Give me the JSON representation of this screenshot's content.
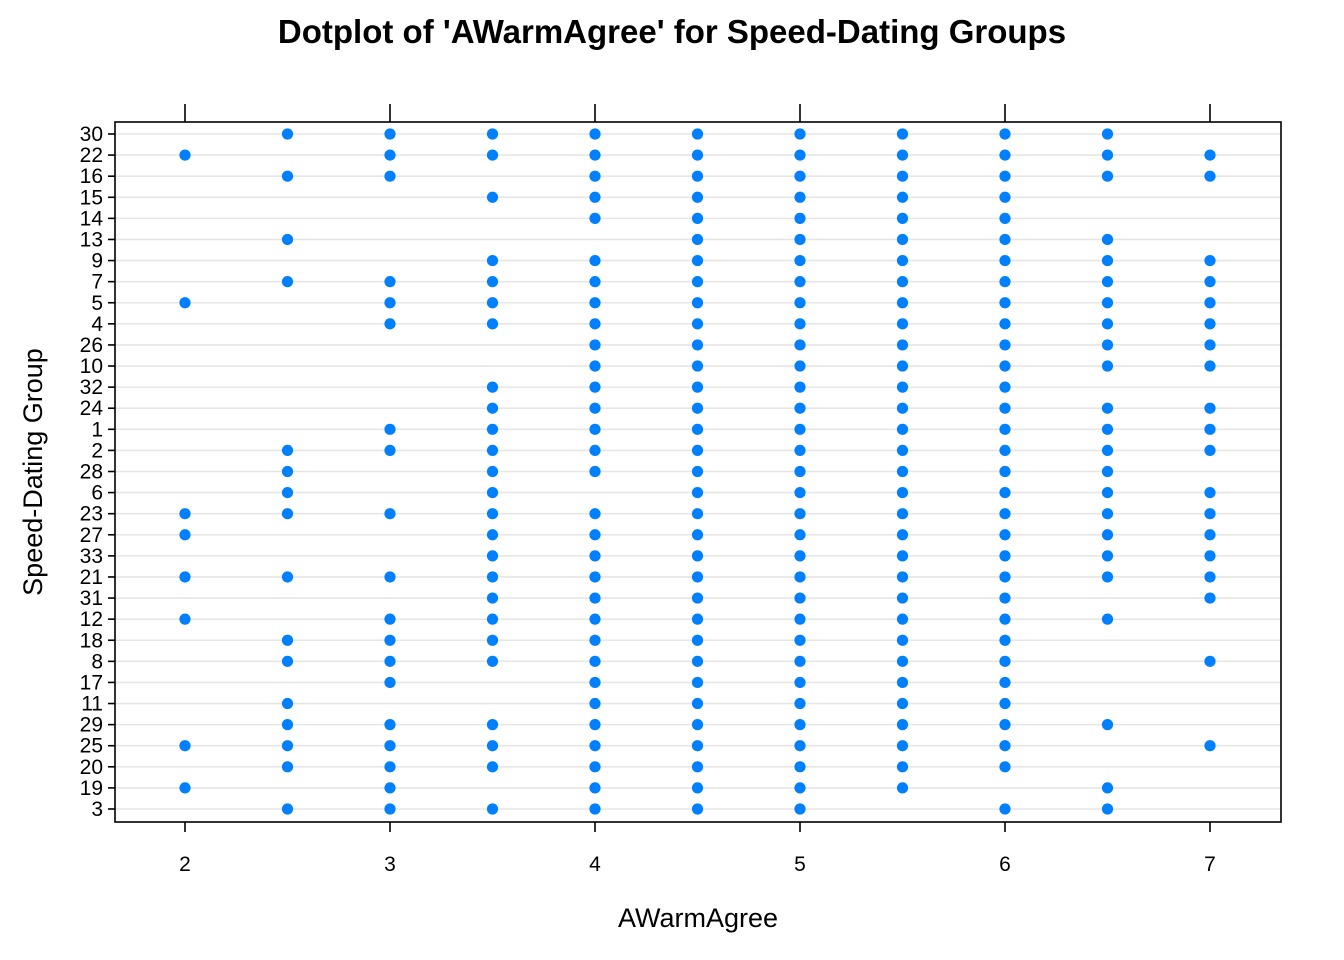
{
  "chart_data": {
    "type": "scatter",
    "title": "Dotplot of 'AWarmAgree' for Speed-Dating Groups",
    "xlabel": "AWarmAgree",
    "ylabel": "Speed-Dating Group",
    "xlim": [
      1.65,
      7.35
    ],
    "x_ticks": [
      2,
      3,
      4,
      5,
      6,
      7
    ],
    "grid": "horizontal",
    "point_color": "#0080ff",
    "categories": [
      "30",
      "22",
      "16",
      "15",
      "14",
      "13",
      "9",
      "7",
      "5",
      "4",
      "26",
      "10",
      "32",
      "24",
      "1",
      "2",
      "28",
      "6",
      "23",
      "27",
      "33",
      "21",
      "31",
      "12",
      "18",
      "8",
      "17",
      "11",
      "29",
      "25",
      "20",
      "19",
      "3"
    ],
    "groups": [
      {
        "group": "30",
        "values": [
          2.5,
          3,
          3.5,
          4,
          4.5,
          5,
          5.5,
          6,
          6.5
        ]
      },
      {
        "group": "22",
        "values": [
          2,
          3,
          3.5,
          4,
          4.5,
          5,
          5.5,
          6,
          6.5,
          7
        ]
      },
      {
        "group": "16",
        "values": [
          2.5,
          3,
          4,
          4.5,
          5,
          5.5,
          6,
          6.5,
          7
        ]
      },
      {
        "group": "15",
        "values": [
          3.5,
          4,
          4.5,
          5,
          5.5,
          6
        ]
      },
      {
        "group": "14",
        "values": [
          4,
          4.5,
          5,
          5.5,
          6
        ]
      },
      {
        "group": "13",
        "values": [
          2.5,
          4.5,
          5,
          5.5,
          6,
          6.5
        ]
      },
      {
        "group": "9",
        "values": [
          3.5,
          4,
          4.5,
          5,
          5.5,
          6,
          6.5,
          7
        ]
      },
      {
        "group": "7",
        "values": [
          2.5,
          3,
          3.5,
          4,
          4.5,
          5,
          5.5,
          6,
          6.5,
          7
        ]
      },
      {
        "group": "5",
        "values": [
          2,
          3,
          3.5,
          4,
          4.5,
          5,
          5.5,
          6,
          6.5,
          7
        ]
      },
      {
        "group": "4",
        "values": [
          3,
          3.5,
          4,
          4.5,
          5,
          5.5,
          6,
          6.5,
          7
        ]
      },
      {
        "group": "26",
        "values": [
          4,
          4.5,
          5,
          5.5,
          6,
          6.5,
          7
        ]
      },
      {
        "group": "10",
        "values": [
          4,
          4.5,
          5,
          5.5,
          6,
          6.5,
          7
        ]
      },
      {
        "group": "32",
        "values": [
          3.5,
          4,
          4.5,
          5,
          5.5,
          6
        ]
      },
      {
        "group": "24",
        "values": [
          3.5,
          4,
          4.5,
          5,
          5.5,
          6,
          6.5,
          7
        ]
      },
      {
        "group": "1",
        "values": [
          3,
          3.5,
          4,
          4.5,
          5,
          5.5,
          6,
          6.5,
          7
        ]
      },
      {
        "group": "2",
        "values": [
          2.5,
          3,
          3.5,
          4,
          4.5,
          5,
          5.5,
          6,
          6.5,
          7
        ]
      },
      {
        "group": "28",
        "values": [
          2.5,
          3.5,
          4,
          4.5,
          5,
          5.5,
          6,
          6.5
        ]
      },
      {
        "group": "6",
        "values": [
          2.5,
          3.5,
          4.5,
          5,
          5.5,
          6,
          6.5,
          7
        ]
      },
      {
        "group": "23",
        "values": [
          2,
          2.5,
          3,
          3.5,
          4,
          4.5,
          5,
          5.5,
          6,
          6.5,
          7
        ]
      },
      {
        "group": "27",
        "values": [
          2,
          3.5,
          4,
          4.5,
          5,
          5.5,
          6,
          6.5,
          7
        ]
      },
      {
        "group": "33",
        "values": [
          3.5,
          4,
          4.5,
          5,
          5.5,
          6,
          6.5,
          7
        ]
      },
      {
        "group": "21",
        "values": [
          2,
          2.5,
          3,
          3.5,
          4,
          4.5,
          5,
          5.5,
          6,
          6.5,
          7
        ]
      },
      {
        "group": "31",
        "values": [
          3.5,
          4,
          4.5,
          5,
          5.5,
          6,
          7
        ]
      },
      {
        "group": "12",
        "values": [
          2,
          3,
          3.5,
          4,
          4.5,
          5,
          5.5,
          6,
          6.5
        ]
      },
      {
        "group": "18",
        "values": [
          2.5,
          3,
          3.5,
          4,
          4.5,
          5,
          5.5,
          6
        ]
      },
      {
        "group": "8",
        "values": [
          2.5,
          3,
          3.5,
          4,
          4.5,
          5,
          5.5,
          6,
          7
        ]
      },
      {
        "group": "17",
        "values": [
          3,
          4,
          4.5,
          5,
          5.5,
          6
        ]
      },
      {
        "group": "11",
        "values": [
          2.5,
          4,
          4.5,
          5,
          5.5,
          6
        ]
      },
      {
        "group": "29",
        "values": [
          2.5,
          3,
          3.5,
          4,
          4.5,
          5,
          5.5,
          6,
          6.5
        ]
      },
      {
        "group": "25",
        "values": [
          2,
          2.5,
          3,
          3.5,
          4,
          4.5,
          5,
          5.5,
          6,
          7
        ]
      },
      {
        "group": "20",
        "values": [
          2.5,
          3,
          3.5,
          4,
          4.5,
          5,
          5.5,
          6
        ]
      },
      {
        "group": "19",
        "values": [
          2,
          3,
          4,
          4.5,
          5,
          5.5,
          6.5
        ]
      },
      {
        "group": "3",
        "values": [
          2.5,
          3,
          3.5,
          4,
          4.5,
          5,
          6,
          6.5
        ]
      }
    ]
  }
}
